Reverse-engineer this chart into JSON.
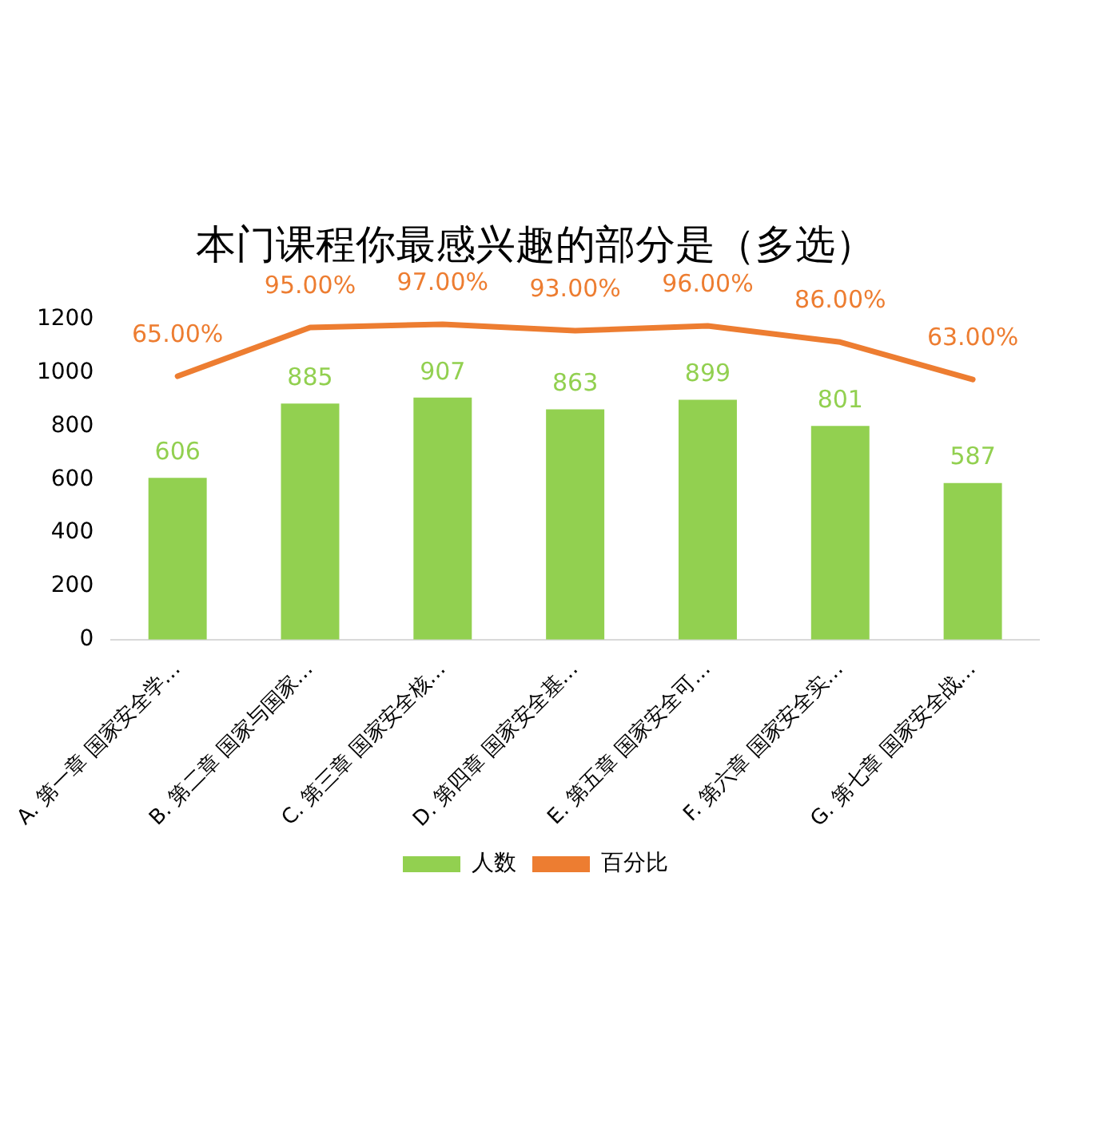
{
  "chart_data": {
    "type": "bar",
    "title": "本门课程你最感兴趣的部分是（多选）",
    "categories": [
      "A. 第一章 国家安全学…",
      "B. 第二章 国家与国家…",
      "C. 第三章 国家安全核…",
      "D. 第四章 国家安全基…",
      "E. 第五章 国家安全可…",
      "F. 第六章 国家安全实…",
      "G. 第七章 国家安全战…"
    ],
    "series": [
      {
        "name": "人数",
        "color": "#92d050",
        "values": [
          606,
          885,
          907,
          863,
          899,
          801,
          587
        ],
        "value_labels": [
          "606",
          "885",
          "907",
          "863",
          "899",
          "801",
          "587"
        ]
      },
      {
        "name": "百分比",
        "type": "line",
        "axis": "y2",
        "color": "#ed7d31",
        "values": [
          65,
          95,
          97,
          93,
          96,
          86,
          63
        ],
        "value_labels": [
          "65.00%",
          "95.00%",
          "97.00%",
          "93.00%",
          "96.00%",
          "86.00%",
          "63.00%"
        ]
      }
    ],
    "ylim": [
      0,
      1200
    ],
    "yticks": [
      0,
      200,
      400,
      600,
      800,
      1000,
      1200
    ],
    "grid": false,
    "legend": "bottom",
    "marker": "none"
  }
}
